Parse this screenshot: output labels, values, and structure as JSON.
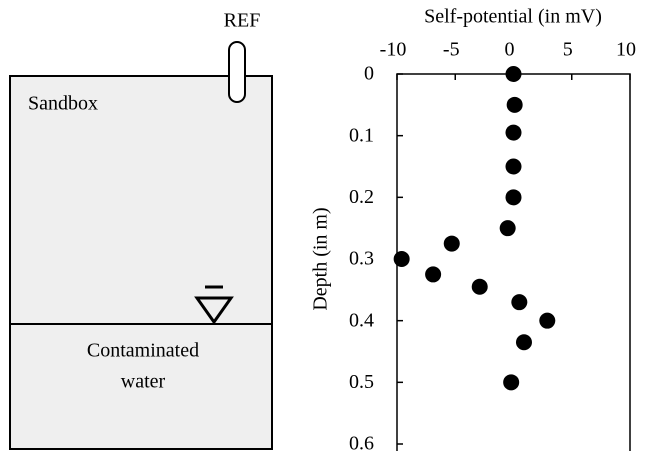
{
  "diagram": {
    "ref_label": "REF",
    "box_label": "Sandbox",
    "water_label": [
      "Contaminated",
      "water"
    ]
  },
  "chart_data": {
    "type": "scatter",
    "x_label": "Self-potential (in mV)",
    "y_label": "Depth (in m)",
    "x": [
      0,
      0.1,
      0,
      0,
      0,
      -0.5,
      -5.3,
      -9.6,
      -6.9,
      -2.9,
      0.5,
      2.9,
      0.9,
      -0.2
    ],
    "values": [
      0,
      0.05,
      0.095,
      0.15,
      0.2,
      0.25,
      0.275,
      0.3,
      0.325,
      0.345,
      0.37,
      0.4,
      0.435,
      0.5
    ],
    "color": "#000000",
    "xlim": [
      -10,
      10
    ],
    "xticks": [
      -10,
      -5,
      0,
      5,
      10
    ],
    "ylim": [
      0,
      0.6
    ],
    "yticks": [
      0,
      0.1,
      0.2,
      0.3,
      0.4,
      0.5,
      0.6
    ],
    "y_inverted": true,
    "x_axis_position": "top",
    "grid": false
  }
}
